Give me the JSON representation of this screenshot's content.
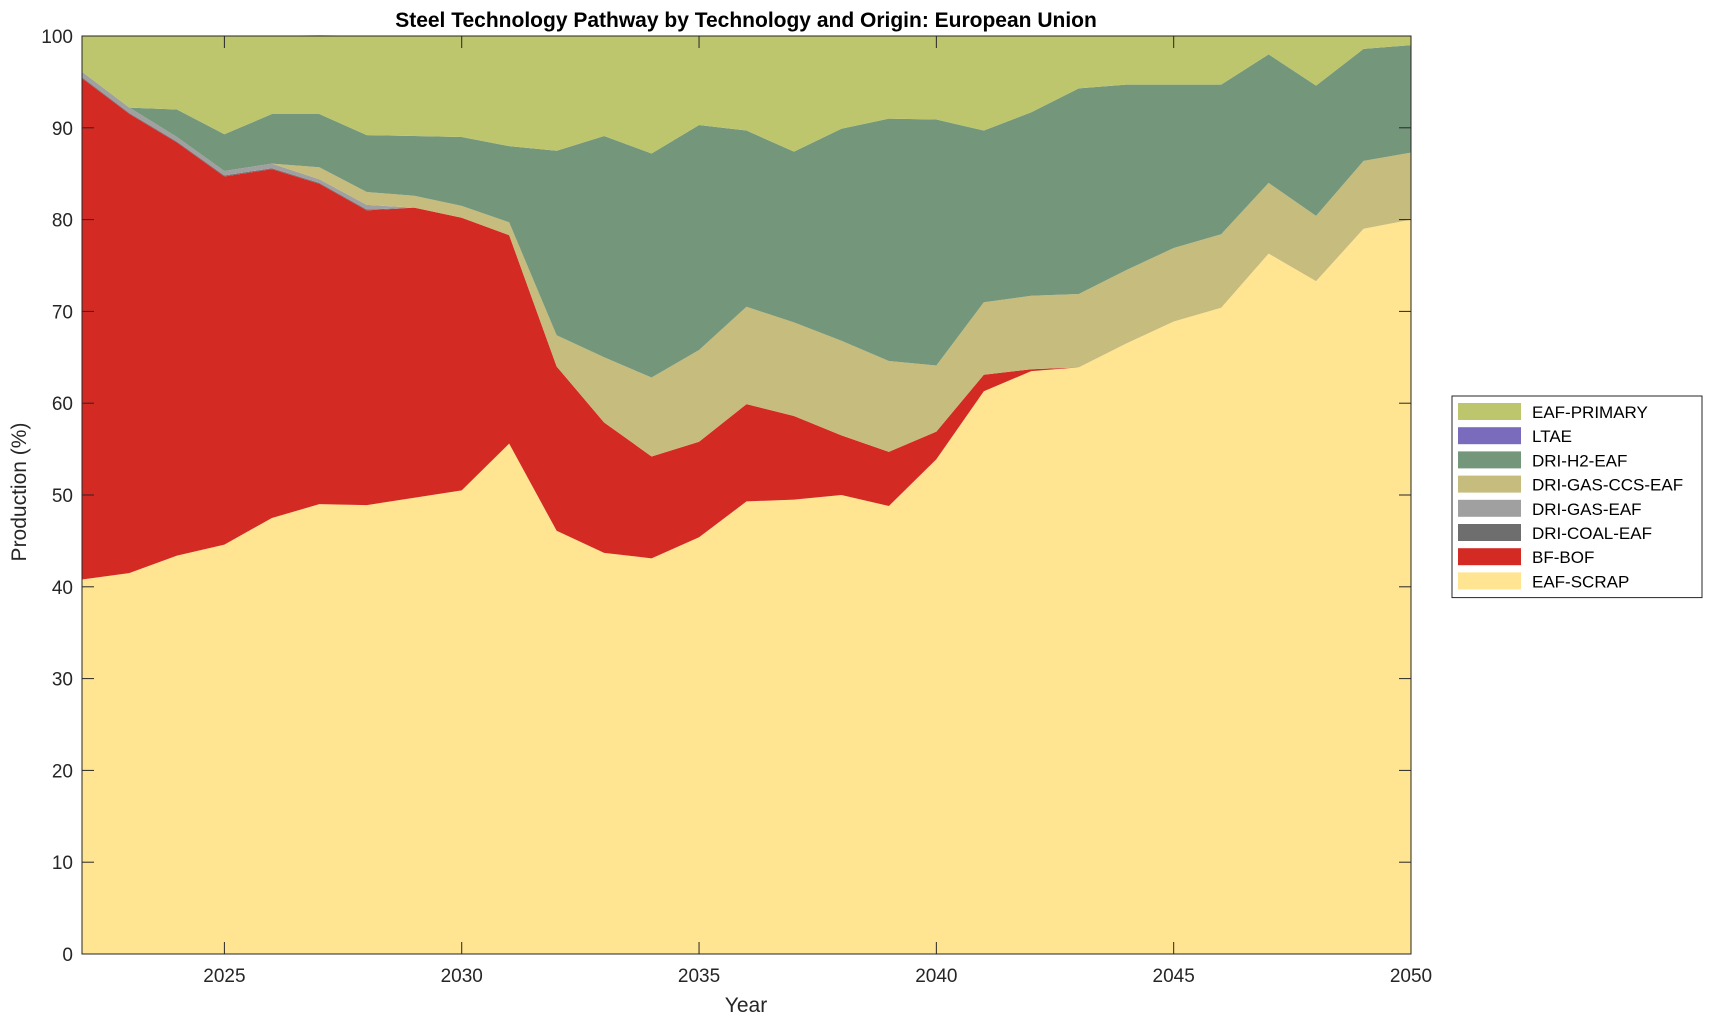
{
  "chart_data": {
    "type": "area",
    "stacked": true,
    "title": "Steel Technology Pathway by Technology and Origin: European Union",
    "xlabel": "Year",
    "ylabel": "Production (%)",
    "xlim": [
      2022,
      2050
    ],
    "ylim": [
      0,
      100
    ],
    "xticks": [
      2025,
      2030,
      2035,
      2040,
      2045,
      2050
    ],
    "yticks": [
      0,
      10,
      20,
      30,
      40,
      50,
      60,
      70,
      80,
      90,
      100
    ],
    "grid": false,
    "legend_position": "right",
    "x": [
      2022,
      2023,
      2024,
      2025,
      2026,
      2027,
      2028,
      2029,
      2030,
      2031,
      2032,
      2033,
      2034,
      2035,
      2036,
      2037,
      2038,
      2039,
      2040,
      2041,
      2042,
      2043,
      2044,
      2045,
      2046,
      2047,
      2048,
      2049,
      2050
    ],
    "series": [
      {
        "name": "EAF-SCRAP",
        "color": "#FFE491",
        "values": [
          40.8,
          41.5,
          43.4,
          44.6,
          47.5,
          49.0,
          48.9,
          49.7,
          50.5,
          55.6,
          46.1,
          43.7,
          43.1,
          45.4,
          49.3,
          49.5,
          50.0,
          48.8,
          53.9,
          61.3,
          63.5,
          63.9,
          66.5,
          68.9,
          70.4,
          76.3,
          73.3,
          79.0,
          80.0
        ]
      },
      {
        "name": "BF-BOF",
        "color": "#D42A24",
        "values": [
          54.6,
          50.0,
          45.0,
          40.1,
          38.0,
          34.9,
          32.1,
          31.6,
          29.7,
          22.7,
          17.9,
          14.2,
          11.1,
          10.4,
          10.6,
          9.1,
          6.5,
          5.9,
          3.0,
          1.8,
          0.2,
          0.0,
          0.0,
          0.0,
          0.0,
          0.0,
          0.0,
          0.0,
          0.0
        ]
      },
      {
        "name": "DRI-COAL-EAF",
        "color": "#6E6E6E",
        "values": [
          0.1,
          0.1,
          0.1,
          0.1,
          0.1,
          0.1,
          0.1,
          0.0,
          0.0,
          0.0,
          0.0,
          0.0,
          0.0,
          0.0,
          0.0,
          0.0,
          0.0,
          0.0,
          0.0,
          0.0,
          0.0,
          0.0,
          0.0,
          0.0,
          0.0,
          0.0,
          0.0,
          0.0,
          0.0
        ]
      },
      {
        "name": "DRI-GAS-EAF",
        "color": "#A0A0A0",
        "values": [
          0.6,
          0.6,
          0.5,
          0.5,
          0.5,
          0.4,
          0.5,
          0.0,
          0.0,
          0.0,
          0.0,
          0.0,
          0.0,
          0.0,
          0.0,
          0.0,
          0.0,
          0.0,
          0.0,
          0.0,
          0.0,
          0.0,
          0.0,
          0.0,
          0.0,
          0.0,
          0.0,
          0.0,
          0.0
        ]
      },
      {
        "name": "DRI-GAS-CCS-EAF",
        "color": "#C5BC7D",
        "values": [
          0.0,
          0.0,
          0.0,
          0.0,
          0.0,
          1.3,
          1.4,
          1.3,
          1.3,
          1.4,
          3.4,
          7.1,
          8.6,
          10.0,
          10.6,
          10.2,
          10.3,
          9.9,
          7.2,
          7.9,
          8.0,
          8.0,
          8.0,
          8.0,
          8.0,
          7.7,
          7.1,
          7.4,
          7.3
        ]
      },
      {
        "name": "DRI-H2-EAF",
        "color": "#74977B",
        "values": [
          0.0,
          0.0,
          3.0,
          4.0,
          5.4,
          5.8,
          6.2,
          6.5,
          7.5,
          8.3,
          20.1,
          24.1,
          24.4,
          24.5,
          19.2,
          18.6,
          23.1,
          26.4,
          26.8,
          18.7,
          20.0,
          22.4,
          20.2,
          17.8,
          16.3,
          14.0,
          14.2,
          12.2,
          11.7
        ]
      },
      {
        "name": "LTAE",
        "color": "#7B6BBD",
        "values": [
          0.0,
          0.0,
          0.0,
          0.0,
          0.0,
          0.0,
          0.0,
          0.0,
          0.0,
          0.0,
          0.0,
          0.0,
          0.0,
          0.0,
          0.0,
          0.0,
          0.0,
          0.0,
          0.0,
          0.0,
          0.0,
          0.0,
          0.0,
          0.0,
          0.0,
          0.0,
          0.0,
          0.0,
          0.0
        ]
      },
      {
        "name": "EAF-PRIMARY",
        "color": "#BDC66C",
        "values": [
          3.9,
          7.8,
          8.0,
          10.7,
          8.5,
          8.6,
          10.8,
          10.9,
          11.0,
          12.0,
          12.5,
          10.9,
          12.8,
          9.7,
          10.3,
          12.6,
          10.1,
          9.0,
          9.1,
          10.3,
          8.3,
          5.7,
          5.3,
          5.3,
          5.3,
          2.0,
          5.4,
          1.4,
          1.0
        ]
      }
    ],
    "legend_order": [
      "EAF-PRIMARY",
      "LTAE",
      "DRI-H2-EAF",
      "DRI-GAS-CCS-EAF",
      "DRI-GAS-EAF",
      "DRI-COAL-EAF",
      "BF-BOF",
      "EAF-SCRAP"
    ]
  }
}
